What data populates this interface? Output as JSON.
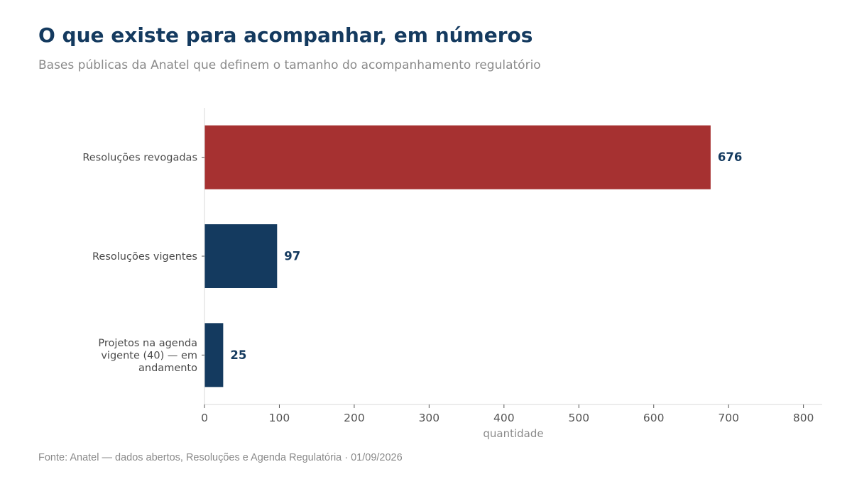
{
  "header": {
    "title": "O que existe para acompanhar, em números",
    "subtitle": "Bases públicas da Anatel que definem o tamanho do acompanhamento regulatório"
  },
  "footer": {
    "source": "Fonte: Anatel — dados abertos, Resoluções e Agenda Regulatória · 01/09/2026"
  },
  "colors": {
    "highlight": "#a63131",
    "primary": "#143a5f"
  },
  "chart_data": {
    "type": "bar",
    "orientation": "horizontal",
    "title": "O que existe para acompanhar, em números",
    "subtitle": "Bases públicas da Anatel que definem o tamanho do acompanhamento regulatório",
    "categories": [
      "Resoluções revogadas",
      "Resoluções vigentes",
      "Projetos na agenda vigente (40) — em andamento"
    ],
    "category_lines": [
      [
        "Resoluções revogadas"
      ],
      [
        "Resoluções vigentes"
      ],
      [
        "Projetos na agenda",
        "vigente (40) — em",
        "andamento"
      ]
    ],
    "values": [
      676,
      97,
      25
    ],
    "data_labels": [
      "676",
      "97",
      "25"
    ],
    "bar_colors": [
      "#a63131",
      "#143a5f",
      "#143a5f"
    ],
    "xlabel": "quantidade",
    "ylabel": "",
    "xlim": [
      0,
      825
    ],
    "xticks": [
      0,
      100,
      200,
      300,
      400,
      500,
      600,
      700,
      800
    ],
    "xtick_labels": [
      "0",
      "100",
      "200",
      "300",
      "400",
      "500",
      "600",
      "700",
      "800"
    ],
    "grid": false,
    "legend": "none"
  }
}
